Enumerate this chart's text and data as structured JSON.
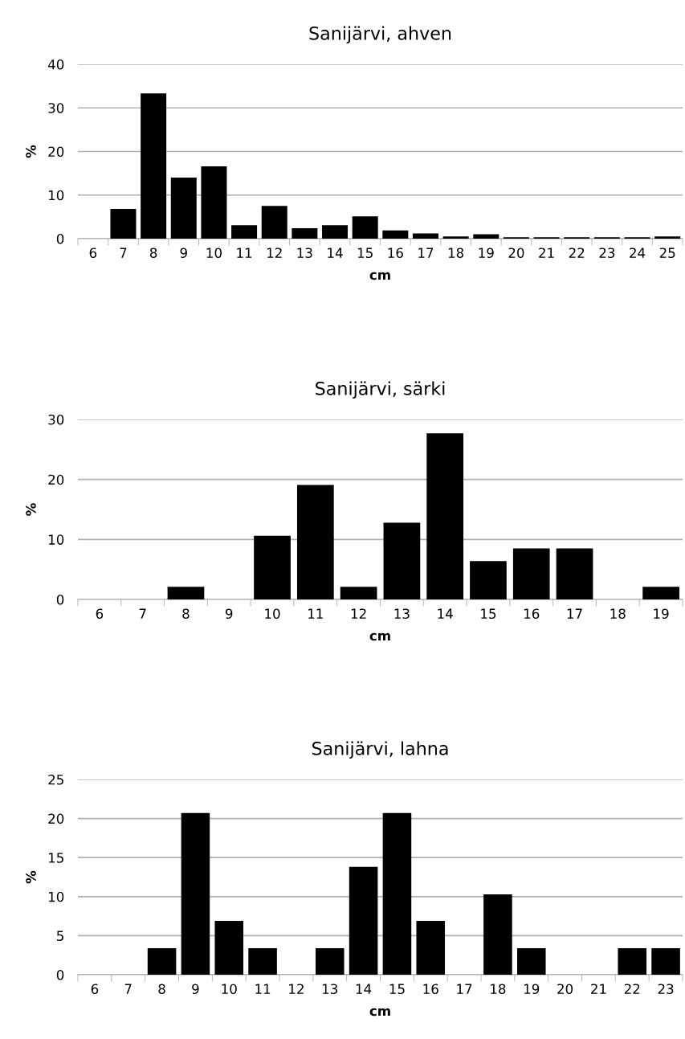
{
  "chart_data": [
    {
      "type": "bar",
      "title": "Sanijärvi, ahven",
      "xlabel": "cm",
      "ylabel": "%",
      "categories": [
        "6",
        "7",
        "8",
        "9",
        "10",
        "11",
        "12",
        "13",
        "14",
        "15",
        "16",
        "17",
        "18",
        "19",
        "20",
        "21",
        "22",
        "23",
        "24",
        "25"
      ],
      "values": [
        0,
        6.8,
        33.3,
        14,
        16.6,
        3.1,
        7.5,
        2.4,
        3.1,
        5.1,
        1.9,
        1.2,
        0.5,
        1.0,
        0.3,
        0.3,
        0.3,
        0.3,
        0.3,
        0.5
      ],
      "color": "#000000",
      "ylim": [
        0,
        40
      ],
      "yticks": [
        0,
        10,
        20,
        30,
        40
      ],
      "grid": "y"
    },
    {
      "type": "bar",
      "title": "Sanijärvi, särki",
      "xlabel": "cm",
      "ylabel": "%",
      "categories": [
        "6",
        "7",
        "8",
        "9",
        "10",
        "11",
        "12",
        "13",
        "14",
        "15",
        "16",
        "17",
        "18",
        "19"
      ],
      "values": [
        0,
        0,
        2.1,
        0,
        10.6,
        19.1,
        2.1,
        12.8,
        27.7,
        6.4,
        8.5,
        8.5,
        0,
        2.1
      ],
      "color": "#000000",
      "ylim": [
        0,
        30
      ],
      "yticks": [
        0,
        10,
        20,
        30
      ],
      "grid": "y"
    },
    {
      "type": "bar",
      "title": "Sanijärvi, lahna",
      "xlabel": "cm",
      "ylabel": "%",
      "categories": [
        "6",
        "7",
        "8",
        "9",
        "10",
        "11",
        "12",
        "13",
        "14",
        "15",
        "16",
        "17",
        "18",
        "19",
        "20",
        "21",
        "22",
        "23"
      ],
      "values": [
        0,
        0,
        3.4,
        20.7,
        6.9,
        3.4,
        0,
        3.4,
        13.8,
        20.7,
        6.9,
        0,
        10.3,
        3.4,
        0,
        0,
        3.4,
        3.4
      ],
      "color": "#000000",
      "ylim": [
        0,
        25
      ],
      "yticks": [
        0,
        5,
        10,
        15,
        20,
        25
      ],
      "grid": "y"
    }
  ]
}
